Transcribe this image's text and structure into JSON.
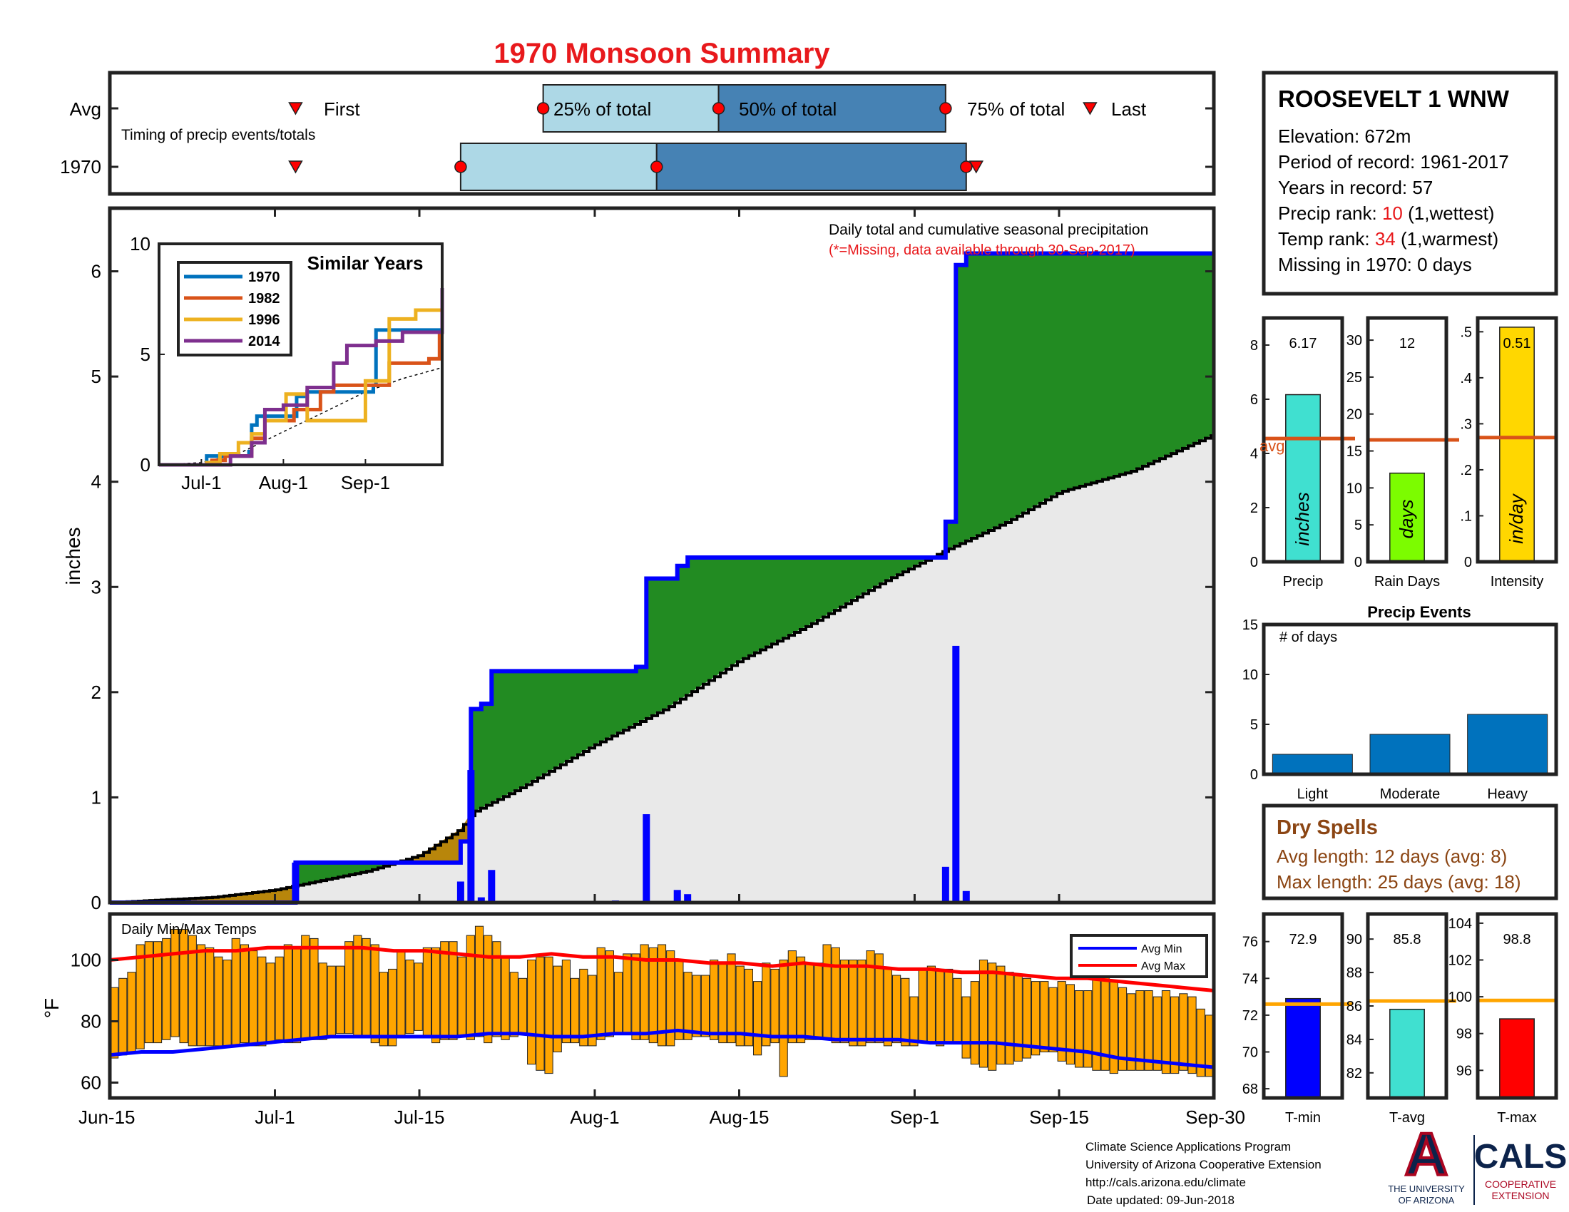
{
  "title": "1970 Monsoon Summary",
  "colors": {
    "title": "#e8191c",
    "red": "#e8191c",
    "marker": "#ff0000",
    "timing_light": "#add8e6",
    "timing_dark": "#4682b4",
    "surplus": "#228b22",
    "deficit": "#b8860b",
    "normal_fill": "#e9e9e9",
    "cumulative_line": "#0000ff",
    "normal_line": "#000000",
    "daily_bar": "#0000ff",
    "temp_bar": "#ffa500",
    "avg_max": "#ff0000",
    "avg_min": "#0000ff",
    "brown": "#8b4513",
    "orange_line": "#d95319",
    "avg_line_yellow": "#ffa500",
    "bar_precip": "#40e0d0",
    "bar_days": "#7cfc00",
    "bar_intensity": "#ffd700",
    "events_bar": "#0072bd",
    "tmin": "#0000ff",
    "tavg": "#40e0d0",
    "tmax": "#ff0000",
    "s1970": "#0072bd",
    "s1982": "#d95319",
    "s1996": "#edb120",
    "s2014": "#7e2f8e",
    "ua_blue": "#0c234b",
    "ua_red": "#ab0520"
  },
  "timing": {
    "avg_label": "Avg",
    "year_label": "1970",
    "subtitle": "Timing of precip events/totals",
    "labels": {
      "first": "First",
      "p25": "25% of total",
      "p50": "50% of total",
      "p75": "75% of total",
      "last": "Last"
    },
    "avg": {
      "first": "Jul-3",
      "p25": "Jul-27",
      "p50": "Aug-13",
      "p75": "Sep-4",
      "last": "Sep-18"
    },
    "y1970": {
      "first": "Jul-3",
      "p25": "Jul-19",
      "p50": "Aug-7",
      "p75": "Sep-6",
      "last": "Sep-6"
    }
  },
  "station": {
    "name": "ROOSEVELT 1 WNW",
    "elevation": "Elevation: 672m",
    "period": "Period of record: 1961-2017",
    "years": "Years in record: 57",
    "precip_rank_label": "Precip rank: ",
    "precip_rank": "10",
    "precip_rank_suffix": " (1,wettest)",
    "temp_rank_label": "Temp rank: ",
    "temp_rank": "34",
    "temp_rank_suffix": " (1,warmest)",
    "missing": "Missing in 1970: 0 days"
  },
  "chart_data": [
    {
      "id": "main",
      "type": "area",
      "title": "Daily total and cumulative seasonal precipitation",
      "note": "(*=Missing, data available through 30-Sep-2017)",
      "ylabel": "inches",
      "ylim": [
        0,
        6.6
      ],
      "yticks": [
        0,
        1,
        2,
        3,
        4,
        5,
        6
      ],
      "xlim": [
        "Jun-15",
        "Sep-30"
      ],
      "xticks": [
        "Jun-15",
        "Jul-1",
        "Jul-15",
        "Aug-1",
        "Aug-15",
        "Sep-1",
        "Sep-15",
        "Sep-30"
      ],
      "cumulative_1970": [
        [
          "Jun-15",
          0
        ],
        [
          "Jul-3",
          0
        ],
        [
          "Jul-3",
          0.38
        ],
        [
          "Jul-19",
          0.38
        ],
        [
          "Jul-19",
          0.58
        ],
        [
          "Jul-20",
          0.58
        ],
        [
          "Jul-20",
          1.84
        ],
        [
          "Jul-21",
          1.84
        ],
        [
          "Jul-21",
          1.89
        ],
        [
          "Jul-22",
          1.89
        ],
        [
          "Jul-22",
          2.2
        ],
        [
          "Aug-5",
          2.2
        ],
        [
          "Aug-5",
          2.24
        ],
        [
          "Aug-6",
          2.24
        ],
        [
          "Aug-6",
          3.08
        ],
        [
          "Aug-9",
          3.08
        ],
        [
          "Aug-9",
          3.2
        ],
        [
          "Aug-10",
          3.2
        ],
        [
          "Aug-10",
          3.28
        ],
        [
          "Sep-4",
          3.28
        ],
        [
          "Sep-4",
          3.62
        ],
        [
          "Sep-5",
          3.62
        ],
        [
          "Sep-5",
          6.06
        ],
        [
          "Sep-6",
          6.06
        ],
        [
          "Sep-6",
          6.17
        ],
        [
          "Sep-30",
          6.17
        ]
      ],
      "normal_cumulative": [
        [
          "Jun-15",
          0
        ],
        [
          "Jun-25",
          0.05
        ],
        [
          "Jul-1",
          0.12
        ],
        [
          "Jul-5",
          0.2
        ],
        [
          "Jul-10",
          0.3
        ],
        [
          "Jul-15",
          0.45
        ],
        [
          "Jul-19",
          0.7
        ],
        [
          "Jul-20",
          0.85
        ],
        [
          "Jul-25",
          1.1
        ],
        [
          "Aug-1",
          1.5
        ],
        [
          "Aug-8",
          1.85
        ],
        [
          "Aug-15",
          2.3
        ],
        [
          "Aug-22",
          2.65
        ],
        [
          "Aug-29",
          3.05
        ],
        [
          "Sep-4",
          3.35
        ],
        [
          "Sep-10",
          3.62
        ],
        [
          "Sep-15",
          3.9
        ],
        [
          "Sep-22",
          4.1
        ],
        [
          "Sep-30",
          4.45
        ]
      ],
      "daily": [
        [
          "Jul-3",
          0.38
        ],
        [
          "Jul-19",
          0.2
        ],
        [
          "Jul-20",
          1.26
        ],
        [
          "Jul-21",
          0.05
        ],
        [
          "Jul-22",
          0.31
        ],
        [
          "Aug-3",
          0.02
        ],
        [
          "Aug-6",
          0.84
        ],
        [
          "Aug-9",
          0.12
        ],
        [
          "Aug-10",
          0.08
        ],
        [
          "Sep-4",
          0.34
        ],
        [
          "Sep-5",
          2.44
        ],
        [
          "Sep-6",
          0.11
        ]
      ]
    },
    {
      "id": "similar",
      "type": "line",
      "title": "Similar Years",
      "ylim": [
        0,
        10
      ],
      "yticks": [
        0,
        5,
        10
      ],
      "xticks": [
        "Jul-1",
        "Aug-1",
        "Sep-1"
      ],
      "series": [
        {
          "name": "1970",
          "values": [
            [
              "Jun-15",
              0
            ],
            [
              "Jul-3",
              0.4
            ],
            [
              "Jul-19",
              0.6
            ],
            [
              "Jul-20",
              1.8
            ],
            [
              "Jul-22",
              2.2
            ],
            [
              "Aug-6",
              3.1
            ],
            [
              "Aug-10",
              3.3
            ],
            [
              "Sep-4",
              3.6
            ],
            [
              "Sep-5",
              6.1
            ],
            [
              "Sep-30",
              6.2
            ]
          ]
        },
        {
          "name": "1982",
          "values": [
            [
              "Jun-15",
              0
            ],
            [
              "Jul-5",
              0.2
            ],
            [
              "Jul-10",
              0.4
            ],
            [
              "Jul-20",
              1.2
            ],
            [
              "Jul-25",
              2.0
            ],
            [
              "Aug-5",
              2.5
            ],
            [
              "Aug-15",
              3.3
            ],
            [
              "Aug-20",
              3.6
            ],
            [
              "Sep-10",
              4.6
            ],
            [
              "Sep-25",
              4.8
            ],
            [
              "Sep-29",
              6.0
            ],
            [
              "Sep-30",
              6.0
            ]
          ]
        },
        {
          "name": "1996",
          "values": [
            [
              "Jun-15",
              0
            ],
            [
              "Jul-3",
              0.1
            ],
            [
              "Jul-8",
              0.5
            ],
            [
              "Jul-15",
              1.0
            ],
            [
              "Jul-20",
              1.4
            ],
            [
              "Jul-25",
              2.0
            ],
            [
              "Aug-2",
              3.2
            ],
            [
              "Aug-10",
              2.0
            ],
            [
              "Aug-25",
              2.0
            ],
            [
              "Sep-1",
              3.8
            ],
            [
              "Sep-6",
              3.8
            ],
            [
              "Sep-10",
              6.6
            ],
            [
              "Sep-20",
              7.0
            ],
            [
              "Sep-30",
              7.0
            ]
          ]
        },
        {
          "name": "2014",
          "values": [
            [
              "Jun-15",
              0
            ],
            [
              "Jul-5",
              0
            ],
            [
              "Jul-12",
              0.4
            ],
            [
              "Jul-20",
              1.0
            ],
            [
              "Jul-25",
              2.5
            ],
            [
              "Aug-1",
              2.7
            ],
            [
              "Aug-10",
              3.5
            ],
            [
              "Aug-20",
              4.6
            ],
            [
              "Aug-25",
              5.4
            ],
            [
              "Sep-5",
              5.6
            ],
            [
              "Sep-15",
              6.0
            ],
            [
              "Sep-30",
              6.4
            ],
            [
              "Sep-30",
              8.0
            ]
          ]
        }
      ],
      "normal": [
        [
          "Jun-15",
          0
        ],
        [
          "Jul-1",
          0.1
        ],
        [
          "Jul-15",
          0.5
        ],
        [
          "Aug-1",
          1.5
        ],
        [
          "Aug-15",
          2.3
        ],
        [
          "Sep-1",
          3.3
        ],
        [
          "Sep-15",
          3.9
        ],
        [
          "Sep-30",
          4.4
        ]
      ]
    },
    {
      "id": "temps",
      "type": "bar",
      "title": "Daily Min/Max Temps",
      "ylabel": "°F",
      "ylim": [
        55,
        115
      ],
      "yticks": [
        60,
        80,
        100
      ],
      "legend": [
        "Avg Min",
        "Avg Max"
      ],
      "series": [
        {
          "name": "max",
          "values": [
            91,
            94,
            96,
            105,
            106,
            106,
            107,
            110,
            110,
            108,
            105,
            104,
            101,
            100,
            107,
            105,
            103,
            101,
            99,
            101,
            105,
            104,
            108,
            107,
            99,
            98,
            98,
            106,
            108,
            107,
            105,
            96,
            97,
            103,
            100,
            99,
            104,
            104,
            106,
            106,
            101,
            108,
            111,
            108,
            106,
            101,
            96,
            94,
            100,
            101,
            101,
            98,
            100,
            94,
            97,
            95,
            104,
            103,
            96,
            102,
            102,
            105,
            104,
            105,
            103,
            100,
            96,
            95,
            95,
            100,
            99,
            102,
            98,
            97,
            93,
            99,
            97,
            100,
            103,
            101,
            99,
            99,
            105,
            104,
            100,
            100,
            100,
            103,
            102,
            97,
            95,
            94,
            88,
            97,
            98,
            97,
            97,
            94,
            88,
            93,
            100,
            99,
            98,
            96,
            95,
            94,
            93,
            93,
            91,
            93,
            92,
            90,
            90,
            98,
            97,
            93,
            91,
            89,
            90,
            90,
            88,
            90,
            88,
            89,
            88,
            84,
            82
          ]
        },
        {
          "name": "min",
          "values": [
            68,
            69,
            70,
            71,
            73,
            73,
            74,
            75,
            73,
            72,
            72,
            72,
            72,
            72,
            72,
            73,
            72,
            72,
            73,
            74,
            73,
            73,
            74,
            74,
            74,
            75,
            76,
            76,
            75,
            75,
            73,
            72,
            72,
            75,
            76,
            77,
            75,
            73,
            74,
            74,
            75,
            74,
            75,
            73,
            75,
            74,
            75,
            76,
            66,
            64,
            63,
            70,
            73,
            73,
            72,
            72,
            74,
            75,
            76,
            76,
            74,
            74,
            73,
            72,
            72,
            74,
            74,
            75,
            75,
            74,
            73,
            73,
            72,
            72,
            69,
            72,
            73,
            62,
            73,
            73,
            74,
            74,
            74,
            73,
            73,
            72,
            72,
            73,
            73,
            72,
            73,
            72,
            72,
            73,
            73,
            72,
            73,
            73,
            68,
            66,
            65,
            64,
            66,
            66,
            67,
            68,
            69,
            70,
            70,
            67,
            66,
            65,
            65,
            64,
            64,
            63,
            64,
            64,
            64,
            64,
            64,
            63,
            63,
            64,
            63,
            62,
            62
          ]
        }
      ],
      "avg_max": [
        100,
        101,
        102,
        103,
        103,
        104,
        104,
        104,
        104,
        103,
        103,
        102,
        101,
        101,
        102,
        101,
        101,
        100,
        100,
        99,
        99,
        98,
        99,
        98,
        98,
        97,
        97,
        96,
        96,
        95,
        94,
        94,
        93,
        92,
        91,
        90
      ],
      "avg_min": [
        69,
        70,
        70,
        71,
        72,
        73,
        74,
        75,
        75,
        75,
        75,
        75,
        76,
        76,
        75,
        75,
        76,
        76,
        77,
        76,
        76,
        75,
        75,
        74,
        74,
        74,
        73,
        73,
        73,
        72,
        71,
        70,
        68,
        67,
        66,
        65
      ]
    },
    {
      "id": "precip_bar",
      "type": "bar",
      "categories": [
        "Precip"
      ],
      "values": [
        6.17
      ],
      "label": "6.17",
      "avg": 4.55,
      "avg_label": "avg",
      "unit": "inches",
      "ylim": [
        0,
        9
      ],
      "yticks": [
        0,
        2,
        4,
        6,
        8
      ]
    },
    {
      "id": "raindays_bar",
      "type": "bar",
      "categories": [
        "Rain Days"
      ],
      "values": [
        12
      ],
      "label": "12",
      "avg": 16.5,
      "unit": "days",
      "ylim": [
        0,
        33
      ],
      "yticks": [
        0,
        5,
        10,
        15,
        20,
        25,
        30
      ]
    },
    {
      "id": "intensity_bar",
      "type": "bar",
      "categories": [
        "Intensity"
      ],
      "values": [
        0.51
      ],
      "label": "0.51",
      "avg": 0.27,
      "unit": "in/day",
      "ylim": [
        0,
        0.53
      ],
      "yticks": [
        0,
        0.1,
        0.2,
        0.3,
        0.4,
        0.5
      ]
    },
    {
      "id": "events",
      "type": "bar",
      "title": "Precip Events",
      "ylabel": "# of days",
      "categories": [
        "Light",
        "Moderate",
        "Heavy"
      ],
      "values": [
        2,
        4,
        6
      ],
      "ylim": [
        0,
        15
      ],
      "yticks": [
        0,
        5,
        10,
        15
      ]
    },
    {
      "id": "tmin_bar",
      "type": "bar",
      "categories": [
        "T-min"
      ],
      "values": [
        72.9
      ],
      "label": "72.9",
      "avg": 72.6,
      "ylim": [
        67.5,
        77.5
      ],
      "yticks": [
        68,
        70,
        72,
        74,
        76
      ]
    },
    {
      "id": "tavg_bar",
      "type": "bar",
      "categories": [
        "T-avg"
      ],
      "values": [
        85.8
      ],
      "label": "85.8",
      "avg": 86.3,
      "ylim": [
        80.5,
        91.5
      ],
      "yticks": [
        82,
        84,
        86,
        88,
        90
      ]
    },
    {
      "id": "tmax_bar",
      "type": "bar",
      "categories": [
        "T-max"
      ],
      "values": [
        98.8
      ],
      "label": "98.8",
      "avg": 99.8,
      "ylim": [
        94.5,
        104.5
      ],
      "yticks": [
        96,
        98,
        100,
        102,
        104
      ]
    }
  ],
  "dry_spells": {
    "title": "Dry Spells",
    "avg": "Avg length: 12 days (avg: 8)",
    "max": "Max length: 25 days (avg: 18)"
  },
  "footer": {
    "line1": "Climate Science Applications Program",
    "line2": "University of Arizona Cooperative Extension",
    "line3": "http://cals.arizona.edu/climate",
    "line4": "Date updated: 09-Jun-2018"
  },
  "logos": {
    "ua_letter": "A",
    "ua_line1": "THE UNIVERSITY",
    "ua_line2": "OF ARIZONA",
    "cals": "CALS",
    "cals_line1": "COOPERATIVE",
    "cals_line2": "EXTENSION"
  }
}
